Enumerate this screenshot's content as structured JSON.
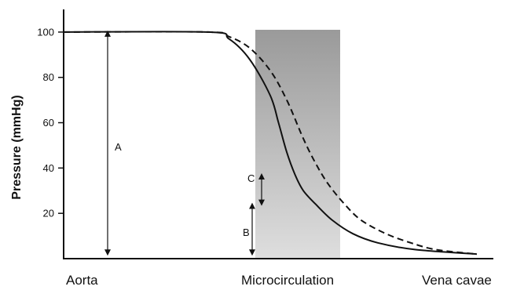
{
  "chart_data": {
    "type": "line",
    "ylabel": "Pressure (mmHg)",
    "ylim": [
      0,
      110
    ],
    "yticks": [
      20,
      40,
      60,
      80,
      100
    ],
    "categories": [
      "Aorta",
      "Microcirculation",
      "Vena cavae"
    ],
    "shaded_band": {
      "label": "Microcirculation",
      "y_top": 101
    },
    "series": [
      {
        "style": "solid",
        "points": [
          [
            0,
            100
          ],
          [
            0.35,
            100
          ],
          [
            0.4,
            97
          ],
          [
            0.45,
            88
          ],
          [
            0.5,
            72
          ],
          [
            0.52,
            60
          ],
          [
            0.54,
            47
          ],
          [
            0.56,
            37
          ],
          [
            0.58,
            30
          ],
          [
            0.61,
            24
          ],
          [
            0.65,
            17
          ],
          [
            0.7,
            11
          ],
          [
            0.76,
            7
          ],
          [
            0.85,
            4
          ],
          [
            1,
            2
          ]
        ]
      },
      {
        "style": "dashed",
        "points": [
          [
            0,
            100
          ],
          [
            0.35,
            100
          ],
          [
            0.4,
            98
          ],
          [
            0.45,
            93
          ],
          [
            0.5,
            83
          ],
          [
            0.54,
            70
          ],
          [
            0.58,
            53
          ],
          [
            0.61,
            42
          ],
          [
            0.64,
            33
          ],
          [
            0.68,
            24
          ],
          [
            0.72,
            17
          ],
          [
            0.78,
            11
          ],
          [
            0.84,
            7
          ],
          [
            0.9,
            4
          ],
          [
            1,
            2
          ]
        ]
      }
    ],
    "annotations": [
      {
        "label": "A",
        "x": 0.14,
        "from": 100,
        "to": 2
      },
      {
        "label": "B",
        "x": 0.5,
        "from": 24,
        "to": 2
      },
      {
        "label": "C",
        "x": 0.53,
        "from": 37,
        "to": 24
      }
    ]
  }
}
